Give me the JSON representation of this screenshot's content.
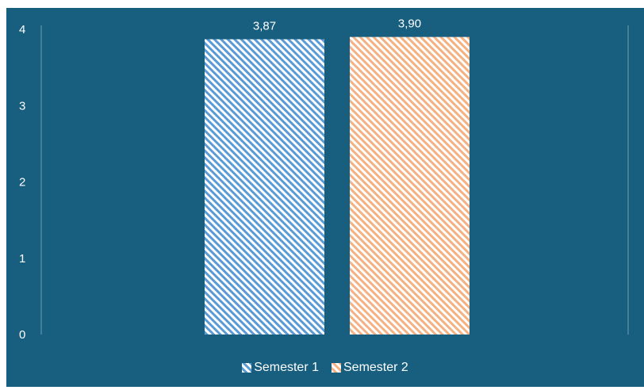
{
  "chart_data": {
    "type": "bar",
    "categories": [
      ""
    ],
    "series": [
      {
        "name": "Semester 1",
        "values": [
          3.87
        ],
        "label": "3,87",
        "color": "#5b9bd5"
      },
      {
        "name": "Semester 2",
        "values": [
          3.9
        ],
        "label": "3,90",
        "color": "#f4b183"
      }
    ],
    "ylim": [
      0,
      4
    ],
    "yticks": [
      "0",
      "1",
      "2",
      "3",
      "4"
    ],
    "title": "",
    "xlabel": "",
    "ylabel": "",
    "grid": false,
    "legend_position": "bottom",
    "pattern": "diagonal-stripes",
    "background_color": "#175e7f",
    "text_color": "#ffffff"
  }
}
